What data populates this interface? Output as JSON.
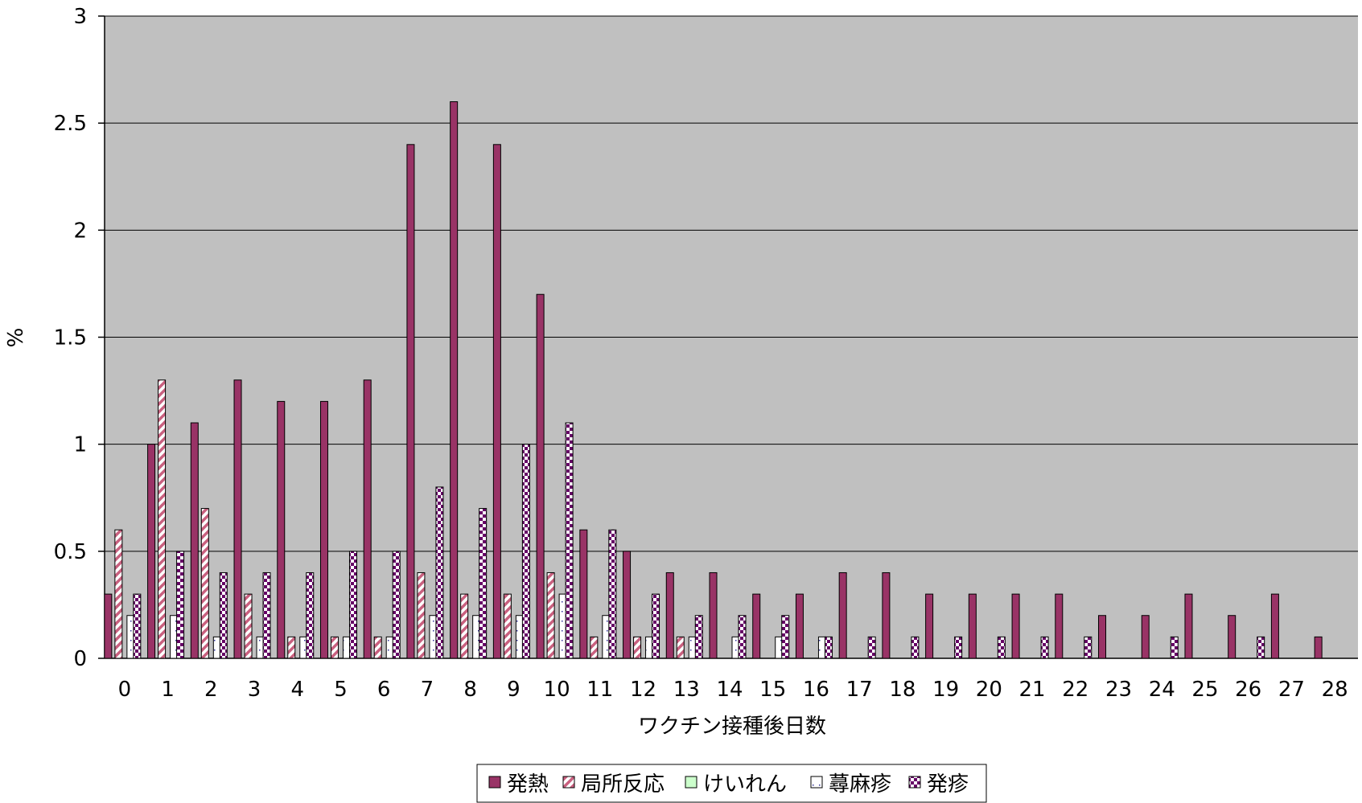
{
  "chart_data": {
    "type": "bar",
    "xlabel": "ワクチン接種後日数",
    "ylabel": "%",
    "ylim": [
      0,
      3
    ],
    "yticks": [
      0,
      0.5,
      1,
      1.5,
      2,
      2.5,
      3
    ],
    "ytick_labels": [
      "0",
      "0.5",
      "1",
      "1.5",
      "2",
      "2.5",
      "3"
    ],
    "grid": true,
    "legend_position": "bottom",
    "categories": [
      "0",
      "1",
      "2",
      "3",
      "4",
      "5",
      "6",
      "7",
      "8",
      "9",
      "10",
      "11",
      "12",
      "13",
      "14",
      "15",
      "16",
      "17",
      "18",
      "19",
      "20",
      "21",
      "22",
      "23",
      "24",
      "25",
      "26",
      "27",
      "28"
    ],
    "series": [
      {
        "name": "発熱",
        "color": "#993366",
        "pattern": "solid",
        "values": [
          0.3,
          1.0,
          1.1,
          1.3,
          1.2,
          1.2,
          1.3,
          2.4,
          2.6,
          2.4,
          1.7,
          0.6,
          0.5,
          0.4,
          0.4,
          0.3,
          0.3,
          0.4,
          0.4,
          0.3,
          0.3,
          0.3,
          0.3,
          0.2,
          0.2,
          0.3,
          0.2,
          0.3,
          0.1
        ]
      },
      {
        "name": "局所反応",
        "color": "#993366",
        "pattern": "diagonal",
        "values": [
          0.6,
          1.3,
          0.7,
          0.3,
          0.1,
          0.1,
          0.1,
          0.4,
          0.3,
          0.3,
          0.4,
          0.1,
          0.1,
          0.1,
          0,
          0,
          0,
          0,
          0,
          0,
          0,
          0,
          0,
          0,
          0,
          0,
          0,
          0,
          0
        ]
      },
      {
        "name": "けいれん",
        "color": "#ccffcc",
        "pattern": "solid",
        "values": [
          0,
          0,
          0,
          0,
          0,
          0,
          0,
          0,
          0,
          0,
          0,
          0,
          0,
          0,
          0,
          0,
          0,
          0,
          0,
          0,
          0,
          0,
          0,
          0,
          0,
          0,
          0,
          0,
          0
        ]
      },
      {
        "name": "蕁麻疹",
        "color": "#333399",
        "pattern": "dotted",
        "values": [
          0.2,
          0.2,
          0.1,
          0.1,
          0.1,
          0.1,
          0.1,
          0.2,
          0.2,
          0.2,
          0.3,
          0.2,
          0.1,
          0.1,
          0.1,
          0.1,
          0.1,
          0,
          0,
          0,
          0,
          0,
          0,
          0,
          0,
          0,
          0,
          0,
          0
        ]
      },
      {
        "name": "発疹",
        "color": "#660066",
        "pattern": "checker",
        "values": [
          0.3,
          0.5,
          0.4,
          0.4,
          0.4,
          0.5,
          0.5,
          0.8,
          0.7,
          1.0,
          1.1,
          0.6,
          0.3,
          0.2,
          0.2,
          0.2,
          0.1,
          0.1,
          0.1,
          0.1,
          0.1,
          0.1,
          0.1,
          0,
          0.1,
          0,
          0.1,
          0,
          0
        ]
      }
    ]
  }
}
